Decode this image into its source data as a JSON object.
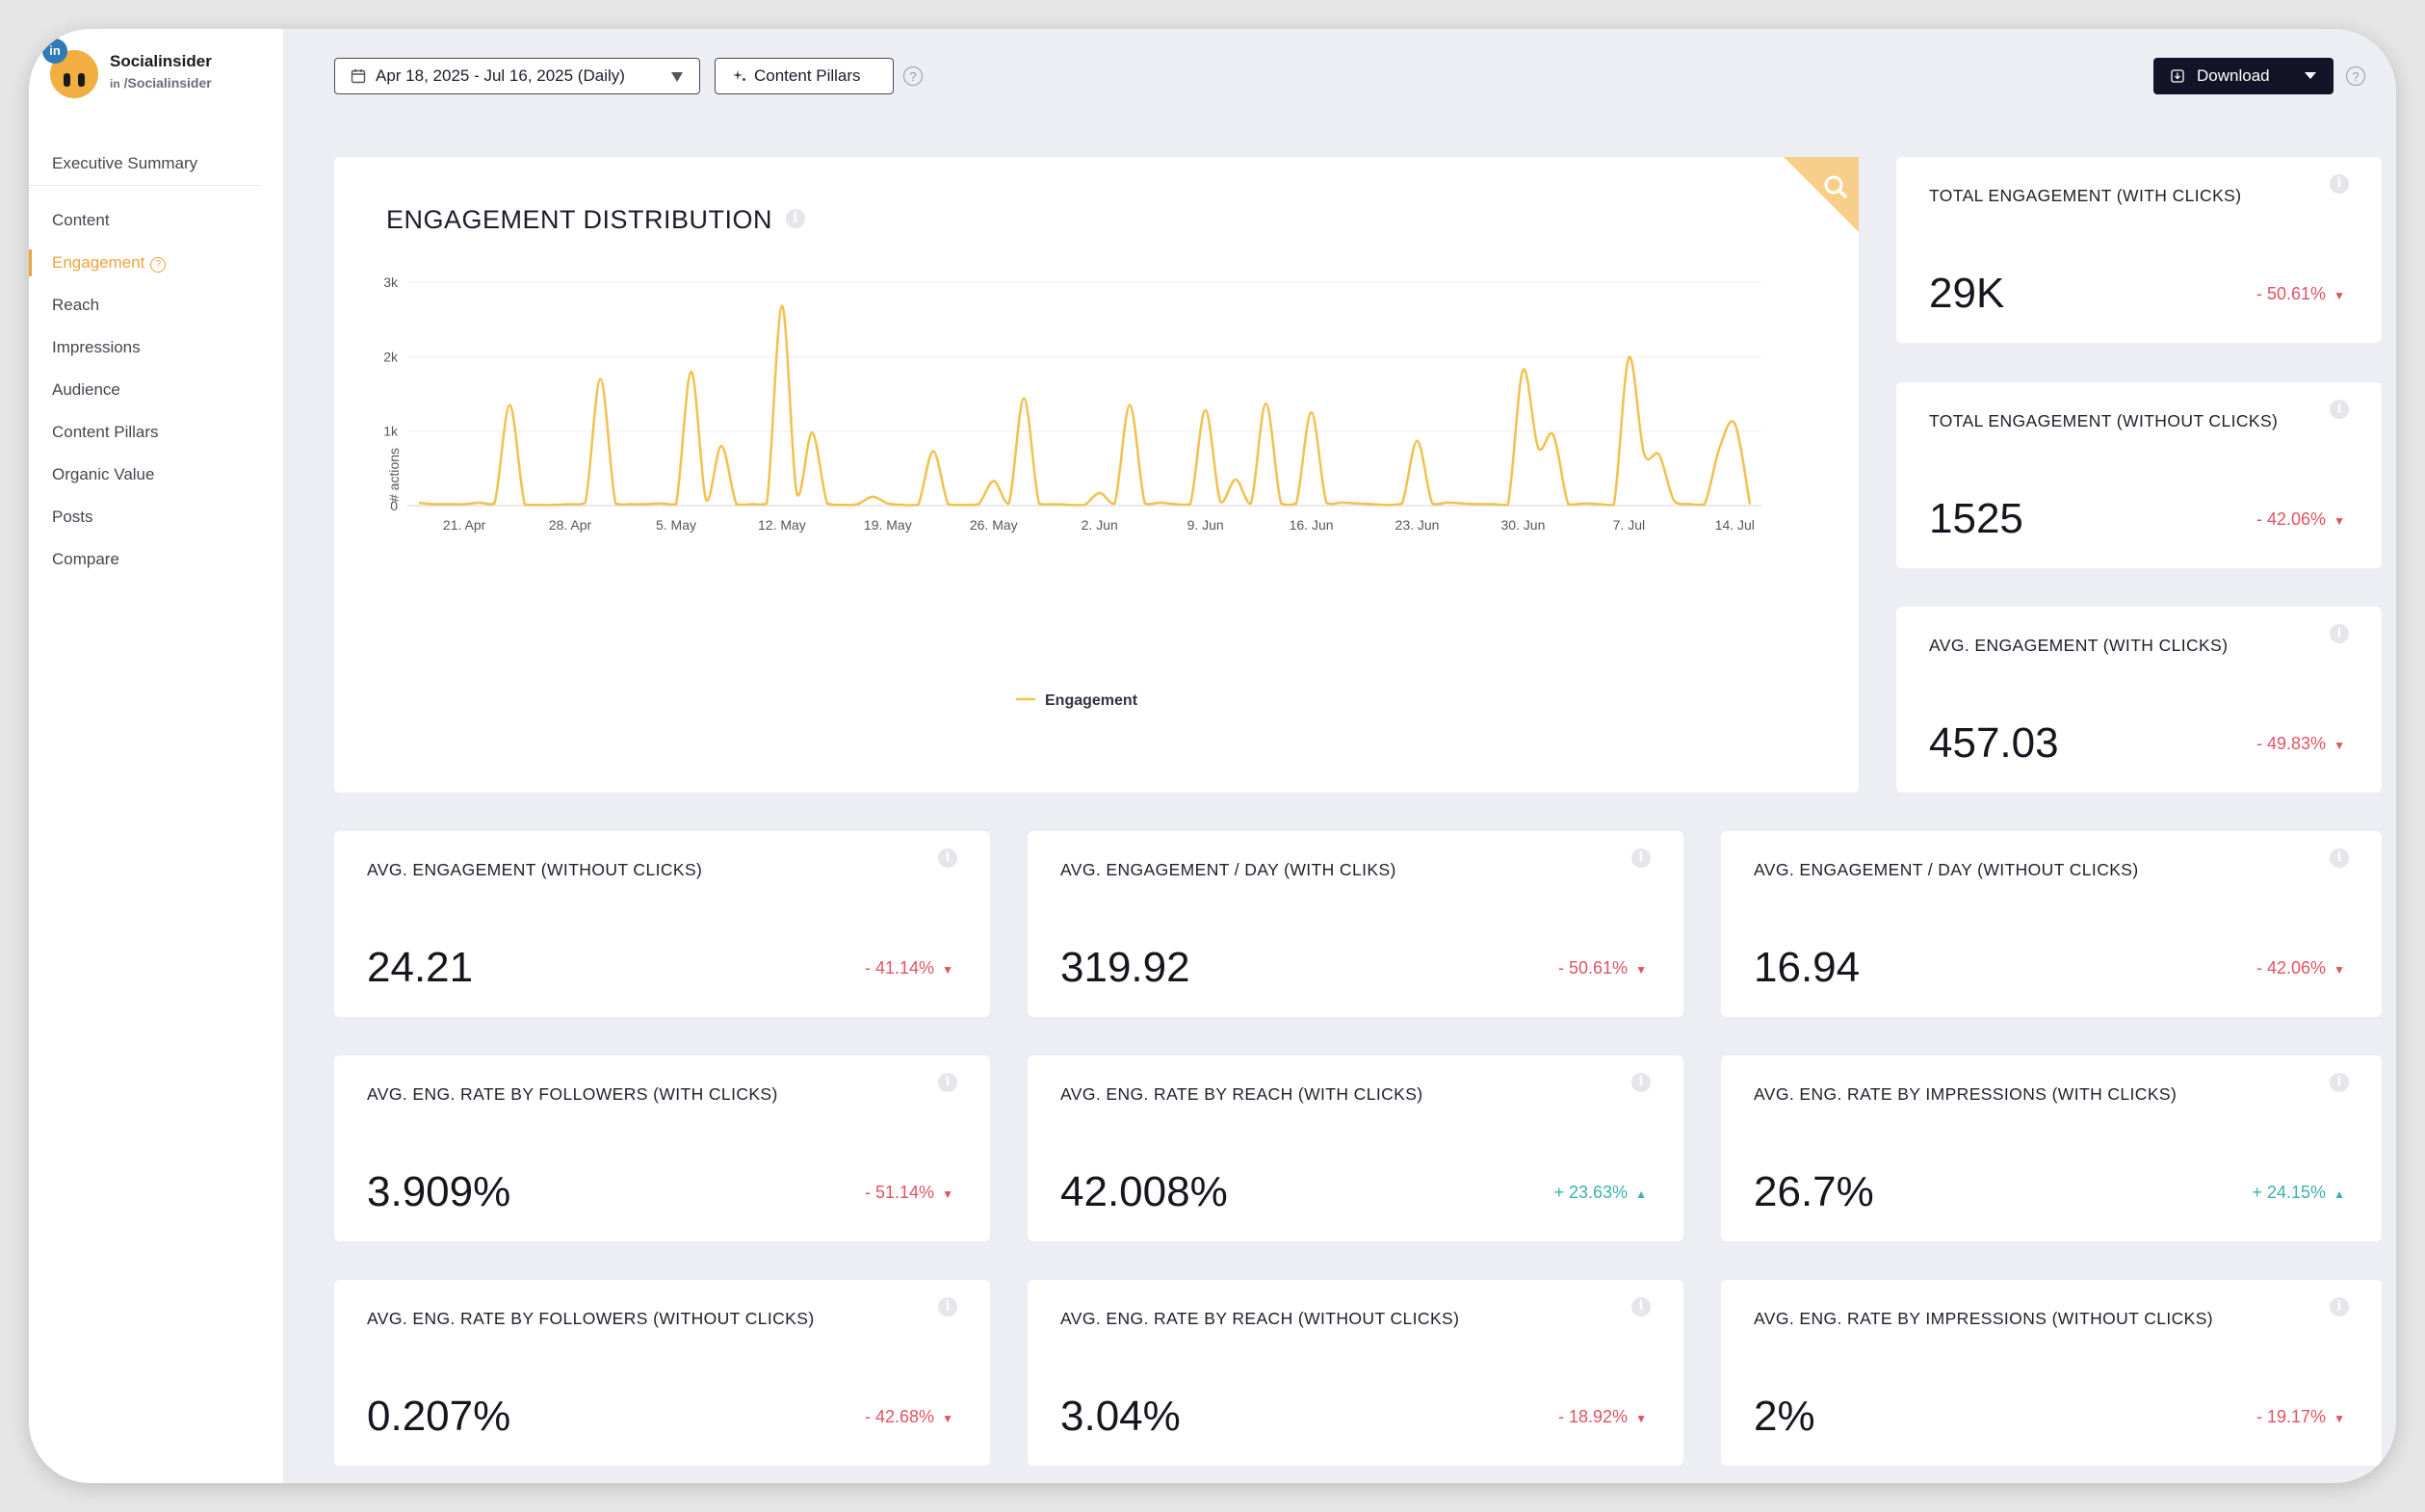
{
  "brand": {
    "name": "Socialinsider",
    "handle": "/Socialinsider",
    "network_badge": "in"
  },
  "sidebar": {
    "items": [
      {
        "label": "Executive Summary"
      },
      {
        "label": "Content"
      },
      {
        "label": "Engagement"
      },
      {
        "label": "Reach"
      },
      {
        "label": "Impressions"
      },
      {
        "label": "Audience"
      },
      {
        "label": "Content Pillars"
      },
      {
        "label": "Organic Value"
      },
      {
        "label": "Posts"
      },
      {
        "label": "Compare"
      }
    ],
    "active_index": 2
  },
  "toolbar": {
    "date_range": "Apr 18, 2025 - Jul 16, 2025 (Daily)",
    "content_pillars_label": "Content Pillars",
    "download_label": "Download"
  },
  "chart_card": {
    "title": "ENGAGEMENT DISTRIBUTION"
  },
  "metrics": [
    {
      "label": "TOTAL ENGAGEMENT (WITH CLICKS)",
      "value": "29K",
      "change": "- 50.61%",
      "direction": "down"
    },
    {
      "label": "TOTAL ENGAGEMENT (WITHOUT CLICKS)",
      "value": "1525",
      "change": "- 42.06%",
      "direction": "down"
    },
    {
      "label": "AVG. ENGAGEMENT (WITH CLICKS)",
      "value": "457.03",
      "change": "- 49.83%",
      "direction": "down"
    },
    {
      "label": "AVG. ENGAGEMENT (WITHOUT CLICKS)",
      "value": "24.21",
      "change": "- 41.14%",
      "direction": "down"
    },
    {
      "label": "AVG. ENGAGEMENT / DAY (WITH CLIKS)",
      "value": "319.92",
      "change": "- 50.61%",
      "direction": "down"
    },
    {
      "label": "AVG. ENGAGEMENT / DAY (WITHOUT CLICKS)",
      "value": "16.94",
      "change": "- 42.06%",
      "direction": "down"
    },
    {
      "label": "AVG. ENG. RATE BY FOLLOWERS (WITH CLICKS)",
      "value": "3.909%",
      "change": "- 51.14%",
      "direction": "down"
    },
    {
      "label": "AVG. ENG. RATE BY REACH (WITH CLICKS)",
      "value": "42.008%",
      "change": "+ 23.63%",
      "direction": "up"
    },
    {
      "label": "AVG. ENG. RATE BY IMPRESSIONS (WITH CLICKS)",
      "value": "26.7%",
      "change": "+ 24.15%",
      "direction": "up"
    },
    {
      "label": "AVG. ENG. RATE BY FOLLOWERS (WITHOUT CLICKS)",
      "value": "0.207%",
      "change": "- 42.68%",
      "direction": "down"
    },
    {
      "label": "AVG. ENG. RATE BY REACH (WITHOUT CLICKS)",
      "value": "3.04%",
      "change": "- 18.92%",
      "direction": "down"
    },
    {
      "label": "AVG. ENG. RATE BY IMPRESSIONS (WITHOUT CLICKS)",
      "value": "2%",
      "change": "- 19.17%",
      "direction": "down"
    }
  ],
  "colors": {
    "accent": "#eba43a",
    "line": "#f2c14e",
    "down": "#e05362",
    "up": "#3cb2a8",
    "download_bg": "#141428"
  },
  "chart_data": {
    "type": "line",
    "title": "ENGAGEMENT DISTRIBUTION",
    "xlabel": "",
    "ylabel": "# actions",
    "ylim": [
      0,
      3000
    ],
    "yticks": [
      0,
      1000,
      2000,
      3000
    ],
    "ytick_labels": [
      "0",
      "1k",
      "2k",
      "3k"
    ],
    "x_start": "2025-04-18",
    "xtick_labels": [
      "21. Apr",
      "28. Apr",
      "5. May",
      "12. May",
      "19. May",
      "26. May",
      "2. Jun",
      "9. Jun",
      "16. Jun",
      "23. Jun",
      "30. Jun",
      "7. Jul",
      "14. Jul"
    ],
    "xtick_day_index": [
      3,
      10,
      17,
      24,
      31,
      38,
      45,
      52,
      59,
      66,
      73,
      80,
      87
    ],
    "legend": [
      "Engagement"
    ],
    "series": [
      {
        "name": "Engagement",
        "values": [
          40,
          20,
          20,
          20,
          40,
          30,
          1350,
          20,
          10,
          10,
          20,
          40,
          1700,
          30,
          20,
          20,
          30,
          20,
          1800,
          70,
          800,
          20,
          20,
          30,
          2680,
          150,
          980,
          30,
          10,
          20,
          120,
          30,
          10,
          10,
          730,
          20,
          10,
          20,
          330,
          30,
          1440,
          30,
          20,
          10,
          10,
          170,
          30,
          1350,
          30,
          40,
          20,
          20,
          1280,
          50,
          350,
          30,
          1370,
          30,
          30,
          1250,
          40,
          40,
          30,
          20,
          10,
          30,
          870,
          30,
          40,
          30,
          20,
          20,
          10,
          1820,
          780,
          950,
          20,
          30,
          20,
          10,
          1990,
          700,
          680,
          60,
          20,
          20,
          780,
          1100,
          20
        ]
      }
    ]
  }
}
